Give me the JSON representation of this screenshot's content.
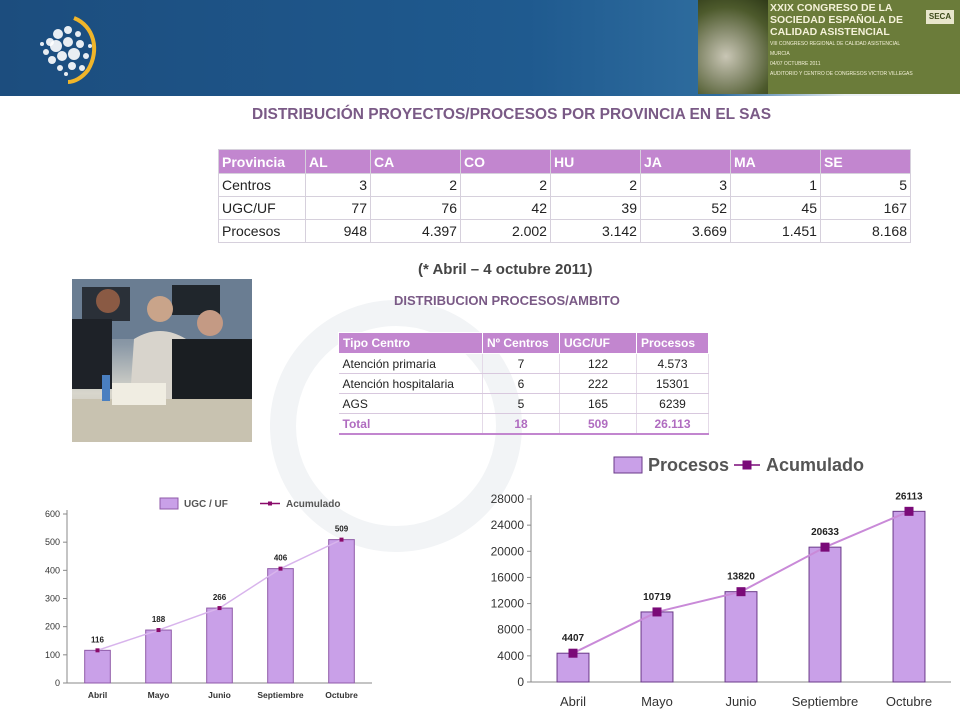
{
  "header": {
    "logo_icon": "dotted-globe-logo-icon"
  },
  "banner": {
    "title_lines": [
      "XXIX CONGRESO DE LA",
      "SOCIEDAD ESPAÑOLA DE",
      "CALIDAD ASISTENCIAL"
    ],
    "badge": "SECA",
    "sub_line1": "VIII CONGRESO REGIONAL DE CALIDAD ASISTENCIAL",
    "sub_line2": "MURCIA",
    "sub_line3": "04/07 OCTUBRE 2011",
    "sub_line4": "AUDITORIO Y CENTRO DE CONGRESOS VICTOR VILLEGAS"
  },
  "section1": {
    "title": "DISTRIBUCIÓN PROYECTOS/PROCESOS POR PROVINCIA EN EL SAS",
    "headers": [
      "Provincia",
      "AL",
      "CA",
      "CO",
      "HU",
      "JA",
      "MA",
      "SE"
    ],
    "rows": [
      [
        "Centros",
        "3",
        "2",
        "2",
        "2",
        "3",
        "1",
        "5"
      ],
      [
        "UGC/UF",
        "77",
        "76",
        "42",
        "39",
        "52",
        "45",
        "167"
      ],
      [
        "Procesos",
        "948",
        "4.397",
        "2.002",
        "3.142",
        "3.669",
        "1.451",
        "8.168"
      ]
    ],
    "note": "(* Abril – 4 octubre 2011)"
  },
  "section2": {
    "title": "DISTRIBUCION PROCESOS/AMBITO",
    "headers": [
      "Tipo Centro",
      "Nº Centros",
      "UGC/UF",
      "Procesos"
    ],
    "rows": [
      [
        "Atención primaria",
        "7",
        "122",
        "4.573"
      ],
      [
        "Atención hospitalaria",
        "6",
        "222",
        "15301"
      ],
      [
        "AGS",
        "5",
        "165",
        "6239"
      ]
    ],
    "total": [
      "Total",
      "18",
      "509",
      "26.113"
    ]
  },
  "chart_data": [
    {
      "type": "bar",
      "categories": [
        "Abril",
        "Mayo",
        "Junio",
        "Septiembre",
        "Octubre"
      ],
      "series": [
        {
          "name": "UGC / UF",
          "kind": "bar",
          "values": [
            116,
            188,
            266,
            406,
            509
          ]
        },
        {
          "name": "Acumulado",
          "kind": "line",
          "values": [
            116,
            188,
            266,
            406,
            509
          ]
        }
      ],
      "data_labels": [
        "116",
        "188",
        "266",
        "406",
        "509"
      ],
      "yticks": [
        "0",
        "100",
        "200",
        "300",
        "400",
        "500",
        "600"
      ],
      "ylim": [
        0,
        600
      ],
      "legend": "top",
      "colors": {
        "bar": "#c9a0e8",
        "bar_edge": "#8f5aa8",
        "line": "#d8b4ec",
        "marker": "#8a0a6a"
      }
    },
    {
      "type": "bar",
      "categories": [
        "Abril",
        "Mayo",
        "Junio",
        "Septiembre",
        "Octubre"
      ],
      "series": [
        {
          "name": "Procesos",
          "kind": "bar",
          "values": [
            4407,
            10719,
            13820,
            20633,
            26113
          ]
        },
        {
          "name": "Acumulado",
          "kind": "line",
          "values": [
            4407,
            10719,
            13820,
            20633,
            26113
          ]
        }
      ],
      "data_labels": [
        "4407",
        "10719",
        "13820",
        "20633",
        "26113"
      ],
      "yticks": [
        "0",
        "4000",
        "8000",
        "12000",
        "16000",
        "20000",
        "24000",
        "28000"
      ],
      "ylim": [
        0,
        28000
      ],
      "legend": "top",
      "colors": {
        "bar": "#c9a0e8",
        "bar_edge": "#6a3a88",
        "line": "#c98ad8",
        "marker": "#7a0a78"
      }
    }
  ]
}
